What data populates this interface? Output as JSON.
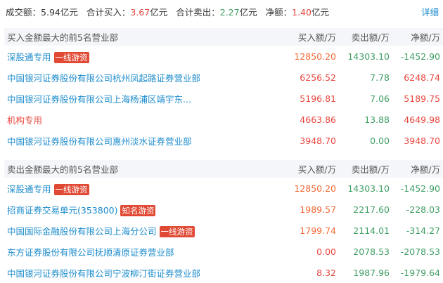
{
  "summary": {
    "turnover_label": "成交额：",
    "turnover_value": "5.94亿元",
    "buy_label": "合计买入：",
    "buy_value": "3.67",
    "buy_unit": "亿元",
    "sell_label": "合计卖出：",
    "sell_value": "2.27",
    "sell_unit": "亿元",
    "net_label": "净额：",
    "net_value": "1.40",
    "net_unit": "亿元",
    "detail_link": "详细"
  },
  "colors": {
    "buy": "#ef6a35",
    "positive": "#e8463e",
    "negative": "#3e9e63",
    "link": "#1a8bcc",
    "tag": "#e04a35"
  },
  "buy_section": {
    "title": "买入金额最大的前5名营业部",
    "col_buy": "买入额/万",
    "col_sell": "卖出额/万",
    "col_net": "净额/万",
    "rows": [
      {
        "name": "深股通专用",
        "tag": "一线游资",
        "buy": "12850.20",
        "sell": "14303.10",
        "net": "-1452.90"
      },
      {
        "name": "中国银河证券股份有限公司杭州凤起路证券营业部",
        "buy": "6256.52",
        "sell": "7.78",
        "net": "6248.74"
      },
      {
        "name": "中国银河证券股份有限公司上海杨浦区靖宇东...",
        "buy": "5196.81",
        "sell": "7.06",
        "net": "5189.75"
      },
      {
        "name": "机构专用",
        "buy": "4663.86",
        "sell": "13.88",
        "net": "4649.98"
      },
      {
        "name": "中国银河证券股份有限公司惠州淡水证券营业部",
        "buy": "3948.70",
        "sell": "0.00",
        "net": "3948.70"
      }
    ]
  },
  "sell_section": {
    "title": "卖出金额最大的前5名营业部",
    "col_buy": "买入额/万",
    "col_sell": "卖出额/万",
    "col_net": "净额/万",
    "rows": [
      {
        "name": "深股通专用",
        "tag": "一线游资",
        "buy": "12850.20",
        "sell": "14303.10",
        "net": "-1452.90"
      },
      {
        "name": "招商证券交易单元(353800)",
        "tag": "知名游资",
        "buy": "1989.57",
        "sell": "2217.60",
        "net": "-228.03"
      },
      {
        "name": "中国国际金融股份有限公司上海分公司",
        "tag": "一线游资",
        "buy": "1799.74",
        "sell": "2114.01",
        "net": "-314.27"
      },
      {
        "name": "东方证券股份有限公司抚顺清原证券营业部",
        "buy": "0.00",
        "sell": "2078.53",
        "net": "-2078.53"
      },
      {
        "name": "中国银河证券股份有限公司宁波柳汀街证券营业部",
        "buy": "8.32",
        "sell": "1987.96",
        "net": "-1979.64"
      }
    ]
  }
}
